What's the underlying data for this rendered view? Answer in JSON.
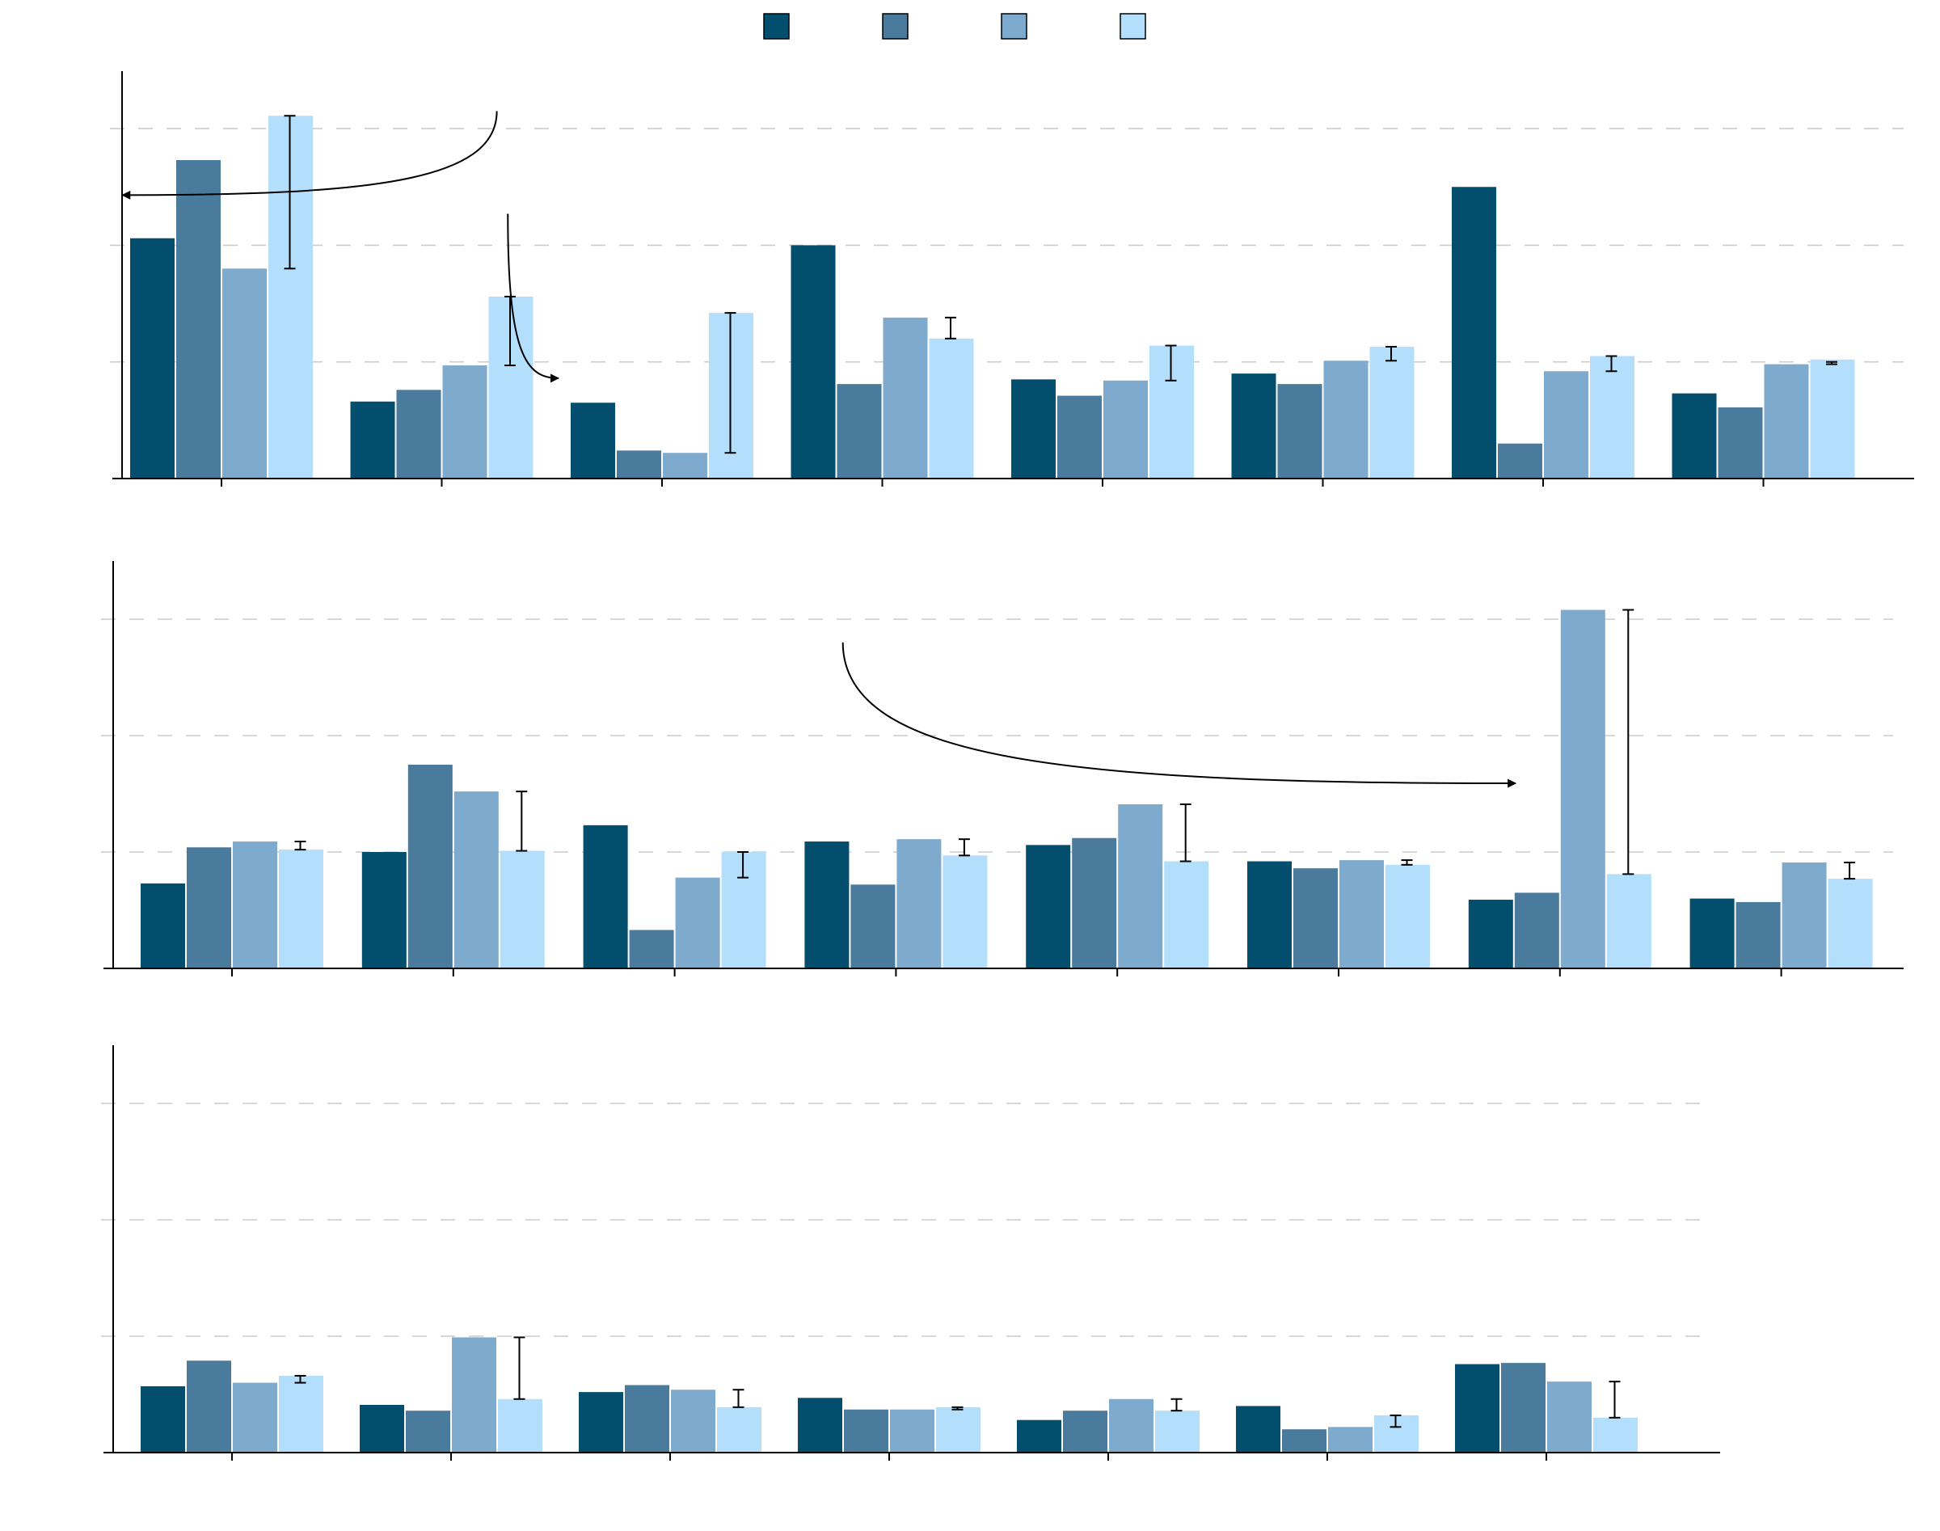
{
  "colors": {
    "series1": "#034e6c",
    "series2": "#4a7a9c",
    "series3": "#7eabcd",
    "series4": "#b3dffc",
    "axis": "#000000",
    "grid": "#cccccc",
    "errorbar": "#000000",
    "background": "#ffffff"
  },
  "legend": {
    "placement": "top-center",
    "entries": [
      {
        "label": "",
        "color": "#034e6c"
      },
      {
        "label": "",
        "color": "#4a7a9c"
      },
      {
        "label": "",
        "color": "#7eabcd"
      },
      {
        "label": "",
        "color": "#b3dffc"
      }
    ]
  },
  "chart_data": [
    {
      "type": "bar",
      "panel": 1,
      "categories": [
        "",
        "",
        "",
        "",
        "",
        "",
        "",
        ""
      ],
      "ylim": [
        0,
        3.5
      ],
      "grid": true,
      "grid_values": [
        1,
        2,
        3
      ],
      "series": [
        {
          "values": [
            2.06,
            0.66,
            0.65,
            2.0,
            0.85,
            0.9,
            2.5,
            0.73
          ]
        },
        {
          "values": [
            2.73,
            0.76,
            0.24,
            0.81,
            0.71,
            0.81,
            0.3,
            0.61
          ]
        },
        {
          "values": [
            1.8,
            0.97,
            0.22,
            1.38,
            0.84,
            1.01,
            0.92,
            0.98
          ]
        },
        {
          "values": [
            3.11,
            1.56,
            1.42,
            1.2,
            1.14,
            1.13,
            1.05,
            1.02
          ]
        }
      ],
      "errorbars": [
        {
          "category": 0,
          "series": 3,
          "low": 1.8,
          "high": 3.11
        },
        {
          "category": 1,
          "series": 3,
          "low": 0.97,
          "high": 1.56
        },
        {
          "category": 2,
          "series": 3,
          "low": 0.22,
          "high": 1.42
        },
        {
          "category": 3,
          "series": 3,
          "low": 1.2,
          "high": 1.38
        },
        {
          "category": 4,
          "series": 3,
          "low": 0.84,
          "high": 1.14
        },
        {
          "category": 5,
          "series": 3,
          "low": 1.01,
          "high": 1.13
        },
        {
          "category": 6,
          "series": 3,
          "low": 0.92,
          "high": 1.05
        },
        {
          "category": 7,
          "series": 3,
          "low": 0.98,
          "high": 1.0
        }
      ],
      "annotations": [
        {
          "text": "",
          "from": [
            1.75,
            3.15
          ],
          "to": [
            0.05,
            2.43
          ]
        },
        {
          "text": "",
          "from": [
            1.8,
            2.27
          ],
          "to": [
            2.03,
            0.86
          ]
        }
      ]
    },
    {
      "type": "bar",
      "panel": 2,
      "categories": [
        "",
        "",
        "",
        "",
        "",
        "",
        "",
        ""
      ],
      "ylim": [
        0,
        3.5
      ],
      "grid": true,
      "grid_values": [
        1,
        2,
        3
      ],
      "series": [
        {
          "values": [
            0.73,
            1.0,
            1.23,
            1.09,
            1.06,
            0.92,
            0.59,
            0.6
          ]
        },
        {
          "values": [
            1.04,
            1.75,
            0.33,
            0.72,
            1.12,
            0.86,
            0.65,
            0.57
          ]
        },
        {
          "values": [
            1.09,
            1.52,
            0.78,
            1.11,
            1.41,
            0.93,
            3.08,
            0.91
          ]
        },
        {
          "values": [
            1.02,
            1.01,
            1.0,
            0.97,
            0.92,
            0.89,
            0.81,
            0.77
          ]
        }
      ],
      "errorbars": [
        {
          "category": 0,
          "series": 3,
          "low": 1.02,
          "high": 1.09
        },
        {
          "category": 1,
          "series": 3,
          "low": 1.01,
          "high": 1.52
        },
        {
          "category": 2,
          "series": 3,
          "low": 0.78,
          "high": 1.0
        },
        {
          "category": 3,
          "series": 3,
          "low": 0.97,
          "high": 1.11
        },
        {
          "category": 4,
          "series": 3,
          "low": 0.92,
          "high": 1.41
        },
        {
          "category": 5,
          "series": 3,
          "low": 0.89,
          "high": 0.93
        },
        {
          "category": 6,
          "series": 3,
          "low": 0.81,
          "high": 3.08
        },
        {
          "category": 7,
          "series": 3,
          "low": 0.77,
          "high": 0.91
        }
      ],
      "annotations": [
        {
          "text": "",
          "from": [
            3.26,
            2.8
          ],
          "to": [
            6.3,
            1.59
          ]
        }
      ]
    },
    {
      "type": "bar",
      "panel": 3,
      "categories": [
        "",
        "",
        "",
        "",
        "",
        "",
        ""
      ],
      "ylim": [
        0,
        3.5
      ],
      "grid": true,
      "grid_values": [
        1,
        2,
        3
      ],
      "series": [
        {
          "values": [
            0.57,
            0.41,
            0.52,
            0.47,
            0.28,
            0.4,
            0.76
          ]
        },
        {
          "values": [
            0.79,
            0.36,
            0.58,
            0.37,
            0.36,
            0.2,
            0.77
          ]
        },
        {
          "values": [
            0.6,
            0.99,
            0.54,
            0.37,
            0.46,
            0.22,
            0.61
          ]
        },
        {
          "values": [
            0.66,
            0.46,
            0.39,
            0.39,
            0.36,
            0.32,
            0.3
          ]
        }
      ],
      "errorbars": [
        {
          "category": 0,
          "series": 3,
          "low": 0.6,
          "high": 0.66
        },
        {
          "category": 1,
          "series": 3,
          "low": 0.46,
          "high": 0.99
        },
        {
          "category": 2,
          "series": 3,
          "low": 0.39,
          "high": 0.54
        },
        {
          "category": 3,
          "series": 3,
          "low": 0.37,
          "high": 0.39
        },
        {
          "category": 4,
          "series": 3,
          "low": 0.36,
          "high": 0.46
        },
        {
          "category": 5,
          "series": 3,
          "low": 0.22,
          "high": 0.32
        },
        {
          "category": 6,
          "series": 3,
          "low": 0.3,
          "high": 0.61
        }
      ],
      "annotations": []
    }
  ]
}
